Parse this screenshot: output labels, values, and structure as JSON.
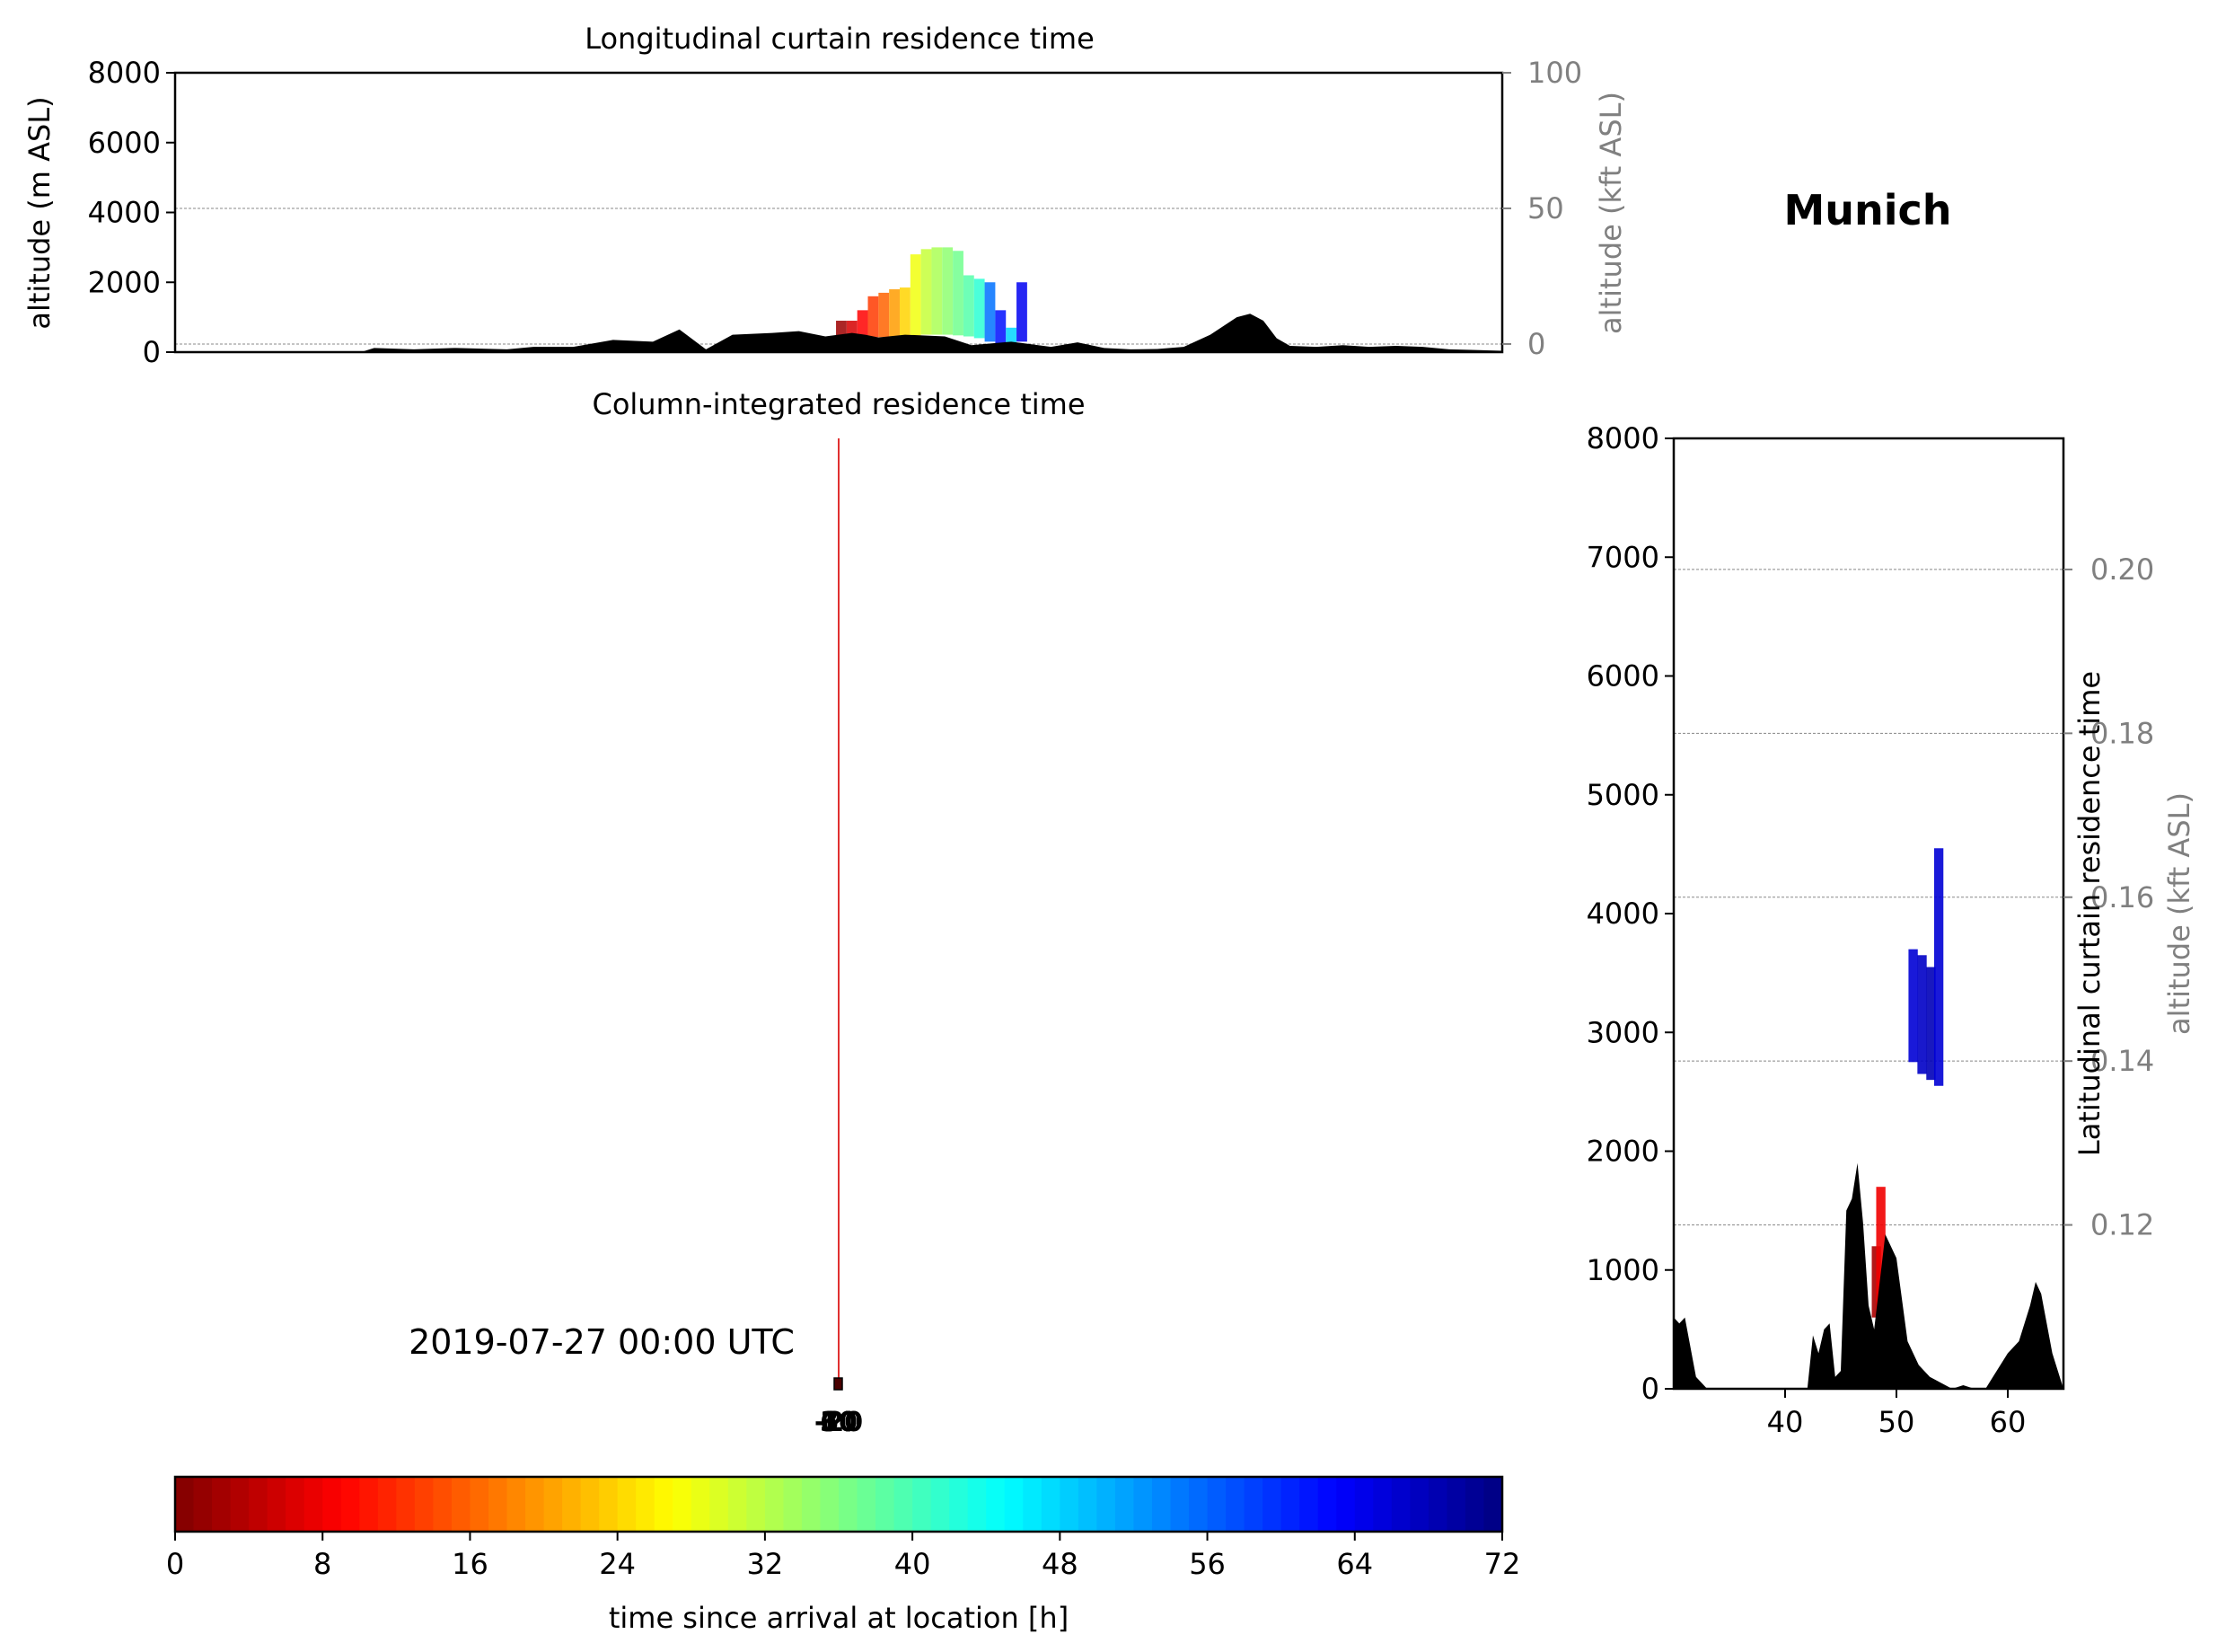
{
  "figure": {
    "location_title": "Munich",
    "timestamp": "2019-07-27 00:00 UTC"
  },
  "chart_data": [
    {
      "id": "longitudinal",
      "type": "area",
      "title": "Longitudinal curtain residence time",
      "ylabel": "altitude (m ASL)",
      "y2label": "altitude (kft ASL)",
      "ylim": [
        0,
        8000
      ],
      "y2lim": [
        -3,
        100
      ],
      "yticks": [
        0,
        2000,
        4000,
        6000,
        8000
      ],
      "y2ticks": [
        0,
        50,
        100
      ],
      "xlim": [
        0,
        100
      ],
      "grid": true,
      "terrain_x": [
        0,
        14,
        15,
        18,
        21,
        25,
        27,
        30,
        33,
        36,
        38,
        40,
        42,
        45,
        47,
        49,
        51,
        52,
        53,
        55,
        58,
        60,
        63,
        66,
        68,
        70,
        72,
        74,
        76,
        78,
        80,
        81,
        82,
        83,
        84,
        86,
        88,
        90,
        92,
        94,
        96,
        100
      ],
      "terrain_y": [
        0,
        0,
        120,
        80,
        120,
        80,
        150,
        150,
        350,
        300,
        650,
        80,
        500,
        550,
        600,
        450,
        550,
        500,
        420,
        500,
        450,
        200,
        300,
        150,
        280,
        120,
        80,
        90,
        150,
        500,
        1000,
        1100,
        900,
        400,
        180,
        150,
        200,
        150,
        180,
        150,
        80,
        40
      ],
      "plume": [
        {
          "x": 50.2,
          "y_min": 400,
          "y_max": 900,
          "age_h": 2
        },
        {
          "x": 51.0,
          "y_min": 400,
          "y_max": 900,
          "age_h": 6
        },
        {
          "x": 51.8,
          "y_min": 420,
          "y_max": 1200,
          "age_h": 9
        },
        {
          "x": 52.6,
          "y_min": 430,
          "y_max": 1600,
          "age_h": 13
        },
        {
          "x": 53.4,
          "y_min": 430,
          "y_max": 1700,
          "age_h": 16
        },
        {
          "x": 54.2,
          "y_min": 450,
          "y_max": 1800,
          "age_h": 20
        },
        {
          "x": 55.0,
          "y_min": 460,
          "y_max": 1850,
          "age_h": 24
        },
        {
          "x": 55.8,
          "y_min": 480,
          "y_max": 2800,
          "age_h": 28
        },
        {
          "x": 56.6,
          "y_min": 500,
          "y_max": 2950,
          "age_h": 31
        },
        {
          "x": 57.4,
          "y_min": 500,
          "y_max": 3000,
          "age_h": 33
        },
        {
          "x": 58.2,
          "y_min": 500,
          "y_max": 3000,
          "age_h": 35
        },
        {
          "x": 59.0,
          "y_min": 480,
          "y_max": 2900,
          "age_h": 37
        },
        {
          "x": 59.8,
          "y_min": 450,
          "y_max": 2200,
          "age_h": 39
        },
        {
          "x": 60.6,
          "y_min": 400,
          "y_max": 2100,
          "age_h": 42
        },
        {
          "x": 61.4,
          "y_min": 300,
          "y_max": 2000,
          "age_h": 55
        },
        {
          "x": 62.2,
          "y_min": 200,
          "y_max": 1200,
          "age_h": 62
        },
        {
          "x": 63.0,
          "y_min": 120,
          "y_max": 700,
          "age_h": 48
        },
        {
          "x": 63.8,
          "y_min": 300,
          "y_max": 2000,
          "age_h": 64
        }
      ]
    },
    {
      "id": "column",
      "type": "scatter",
      "title": "Column-integrated residence time",
      "tick_labels": [
        "-20",
        "10",
        "30",
        "60"
      ]
    },
    {
      "id": "latitudinal",
      "type": "area",
      "title": "Latitudinal curtain residence time",
      "y2label": "altitude (kft ASL)",
      "xlim": [
        30,
        65
      ],
      "xticks": [
        40,
        50,
        60
      ],
      "ylim": [
        0,
        8000
      ],
      "yticks": [
        0,
        1000,
        2000,
        3000,
        4000,
        5000,
        6000,
        7000,
        8000
      ],
      "y2lim": [
        0.1,
        0.216
      ],
      "y2ticks": [
        0.12,
        0.14,
        0.16,
        0.18,
        0.2
      ],
      "grid": true,
      "terrain_x": [
        30,
        30.5,
        31,
        32,
        33,
        42,
        42.5,
        43,
        43.5,
        44,
        44.5,
        45,
        45.5,
        46,
        46.5,
        47,
        47.5,
        48,
        49,
        50,
        51,
        52,
        53,
        54,
        55,
        56,
        57,
        58,
        59,
        60,
        61,
        62,
        62.5,
        63,
        64,
        65
      ],
      "terrain_y": [
        600,
        550,
        600,
        100,
        0,
        0,
        450,
        300,
        500,
        550,
        100,
        150,
        1500,
        1600,
        1900,
        1400,
        700,
        500,
        1300,
        1100,
        400,
        200,
        100,
        50,
        0,
        30,
        0,
        0,
        150,
        300,
        400,
        700,
        900,
        800,
        300,
        0
      ],
      "plume": [
        {
          "x": 48.2,
          "y_min": 600,
          "y_max": 1200,
          "age_h": 3
        },
        {
          "x": 48.6,
          "y_min": 500,
          "y_max": 1700,
          "age_h": 8
        },
        {
          "x": 51.5,
          "y_min": 2750,
          "y_max": 3700,
          "age_h": 66
        },
        {
          "x": 52.3,
          "y_min": 2650,
          "y_max": 3650,
          "age_h": 67
        },
        {
          "x": 53.1,
          "y_min": 2600,
          "y_max": 3550,
          "age_h": 68
        },
        {
          "x": 53.8,
          "y_min": 2550,
          "y_max": 4550,
          "age_h": 66
        }
      ]
    },
    {
      "id": "colorbar",
      "type": "heatmap",
      "xlabel": "time since arrival at location [h]",
      "range": [
        0,
        72
      ],
      "ticks": [
        0,
        8,
        16,
        24,
        32,
        40,
        48,
        56,
        64,
        72
      ],
      "colormap": "jet",
      "levels": 72
    }
  ]
}
